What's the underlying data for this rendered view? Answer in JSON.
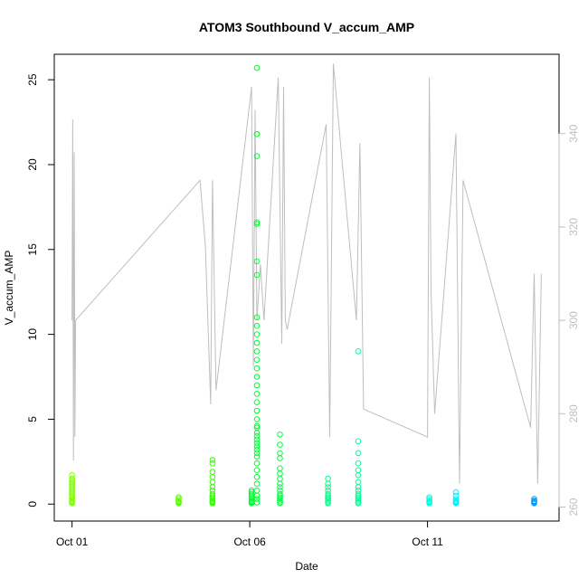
{
  "chart_data": {
    "type": "scatter",
    "title": "ATOM3 Southbound V_accum_AMP",
    "xlabel": "Date",
    "ylabel": "V_accum_AMP",
    "x_ticks": [
      "Oct 01",
      "Oct 06",
      "Oct 11"
    ],
    "x_tick_days": [
      1,
      6,
      11
    ],
    "xlim_days": [
      0.5,
      14.7
    ],
    "ylim": [
      -1,
      26.5
    ],
    "y_ticks": [
      0,
      5,
      10,
      15,
      20,
      25
    ],
    "y2lim": [
      257,
      357
    ],
    "y2_ticks": [
      260,
      280,
      300,
      320,
      340
    ],
    "y2_color": "#bebebe",
    "grid": false,
    "legend": "none",
    "secondary_line": {
      "color": "#bebebe",
      "days": [
        1.0,
        1.02,
        1.04,
        1.06,
        1.08,
        1.1,
        4.6,
        4.75,
        4.9,
        4.95,
        5.05,
        6.05,
        6.1,
        6.15,
        6.2,
        6.3,
        6.4,
        6.8,
        6.9,
        6.95,
        7.0,
        7.05,
        8.15,
        8.25,
        8.35,
        9.0,
        9.1,
        9.2,
        11.0,
        11.05,
        11.1,
        11.2,
        11.8,
        11.9,
        12.0,
        13.9,
        14.0,
        14.1,
        14.2
      ],
      "values": [
        300,
        343,
        270,
        336,
        275,
        300,
        330,
        316,
        282,
        330,
        285,
        350,
        290,
        345,
        300,
        312,
        300,
        352,
        295,
        350,
        300,
        298,
        342,
        275,
        355,
        300,
        338,
        281,
        275,
        352,
        306,
        280,
        340,
        265,
        330,
        277,
        310,
        265,
        310
      ]
    },
    "series": [
      {
        "color": "#80ff00",
        "days": [
          1.0,
          1.0,
          1.0,
          1.0,
          1.0,
          1.0,
          1.0,
          1.0,
          1.0,
          1.0,
          1.0,
          1.0,
          1.0,
          1.0,
          1.0,
          1.0,
          1.0,
          1.0
        ],
        "values": [
          0.05,
          0.1,
          0.15,
          0.2,
          0.3,
          0.4,
          0.5,
          0.6,
          0.7,
          0.8,
          0.9,
          1.0,
          1.1,
          1.2,
          1.3,
          1.4,
          1.5,
          1.7
        ]
      },
      {
        "color": "#55ff00",
        "days": [
          4.0,
          4.0,
          4.0,
          4.0,
          4.0,
          4.0
        ],
        "values": [
          0.05,
          0.1,
          0.15,
          0.2,
          0.3,
          0.4
        ]
      },
      {
        "color": "#33ff00",
        "days": [
          4.95,
          4.95,
          4.95,
          4.95,
          4.95,
          4.95,
          4.95,
          4.95,
          4.95,
          4.95,
          4.95,
          4.95,
          4.95,
          4.95,
          4.95
        ],
        "values": [
          0.05,
          0.1,
          0.15,
          0.2,
          0.3,
          0.4,
          0.5,
          0.6,
          0.8,
          1.0,
          1.3,
          1.6,
          1.9,
          2.4,
          2.6
        ]
      },
      {
        "color": "#00ff33",
        "days": [
          6.05,
          6.05,
          6.05,
          6.05,
          6.05,
          6.05,
          6.05,
          6.05,
          6.05,
          6.05,
          6.2,
          6.2,
          6.2,
          6.2,
          6.2,
          6.2,
          6.2,
          6.2,
          6.2,
          6.2,
          6.2,
          6.2,
          6.2,
          6.2,
          6.2,
          6.2,
          6.2,
          6.2,
          6.2,
          6.2,
          6.2,
          6.2,
          6.2,
          6.2,
          6.2,
          6.2,
          6.2,
          6.2,
          6.2,
          6.2,
          6.2,
          6.2,
          6.2,
          6.2,
          6.2,
          6.2,
          6.2,
          6.2,
          6.2
        ],
        "values": [
          0.05,
          0.1,
          0.15,
          0.2,
          0.3,
          0.4,
          0.5,
          0.6,
          0.7,
          0.8,
          0.1,
          0.3,
          0.5,
          0.8,
          1.2,
          1.6,
          2.0,
          2.4,
          2.8,
          3.2,
          3.6,
          4.0,
          4.5,
          5.0,
          5.5,
          6.0,
          6.5,
          7.0,
          7.5,
          8.0,
          8.5,
          9.0,
          9.5,
          10.0,
          10.5,
          11.0,
          13.5,
          14.3,
          16.5,
          16.6,
          20.5,
          21.8,
          21.8,
          25.7,
          3.0,
          3.4,
          3.8,
          4.2,
          4.6
        ]
      },
      {
        "color": "#00ff44",
        "days": [
          6.85,
          6.85,
          6.85,
          6.85,
          6.85,
          6.85,
          6.85,
          6.85,
          6.85,
          6.85,
          6.85,
          6.85,
          6.85,
          6.85,
          6.85,
          6.85,
          6.85
        ],
        "values": [
          0.05,
          0.1,
          0.2,
          0.3,
          0.4,
          0.5,
          0.6,
          0.8,
          1.0,
          1.2,
          1.5,
          1.8,
          2.1,
          2.7,
          3.0,
          3.5,
          4.1
        ]
      },
      {
        "color": "#00ff88",
        "days": [
          8.2,
          8.2,
          8.2,
          8.2,
          8.2,
          8.2,
          8.2,
          8.2,
          8.2,
          8.2,
          8.2
        ],
        "values": [
          0.05,
          0.1,
          0.2,
          0.3,
          0.4,
          0.5,
          0.6,
          0.8,
          1.0,
          1.2,
          1.5
        ]
      },
      {
        "color": "#00ff99",
        "days": [
          9.05,
          9.05,
          9.05,
          9.05,
          9.05,
          9.05,
          9.05,
          9.05,
          9.05,
          9.05,
          9.05,
          9.05,
          9.05,
          9.05,
          9.05,
          9.05
        ],
        "values": [
          0.05,
          0.1,
          0.2,
          0.3,
          0.4,
          0.5,
          0.6,
          0.8,
          1.0,
          1.3,
          1.7,
          2.0,
          2.4,
          3.0,
          3.7,
          9.0
        ]
      },
      {
        "color": "#00ffdd",
        "days": [
          11.05,
          11.05,
          11.05,
          11.05,
          11.05,
          11.05
        ],
        "values": [
          0.05,
          0.1,
          0.15,
          0.2,
          0.3,
          0.4
        ]
      },
      {
        "color": "#00eeff",
        "days": [
          11.8,
          11.8,
          11.8,
          11.8,
          11.8,
          11.8,
          11.8
        ],
        "values": [
          0.05,
          0.1,
          0.15,
          0.2,
          0.3,
          0.5,
          0.7
        ]
      },
      {
        "color": "#0099ff",
        "days": [
          14.0,
          14.0,
          14.0,
          14.0,
          14.0
        ],
        "values": [
          0.05,
          0.1,
          0.15,
          0.2,
          0.3
        ]
      }
    ]
  }
}
